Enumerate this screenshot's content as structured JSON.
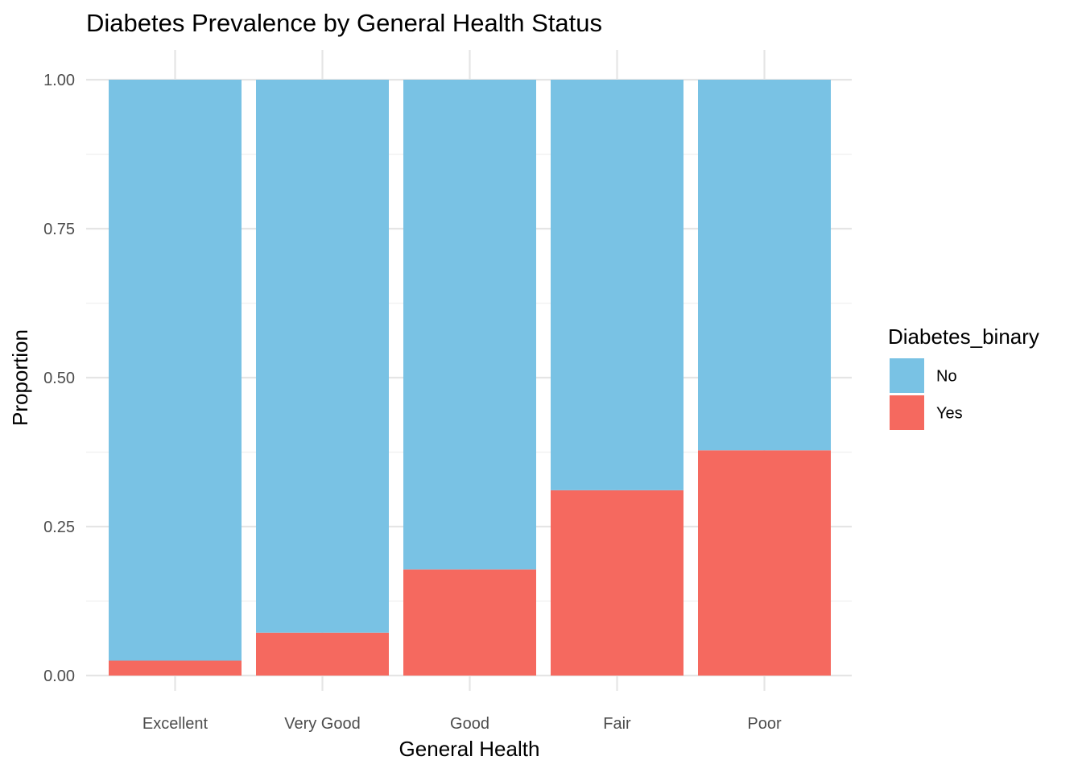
{
  "chart_data": {
    "type": "bar",
    "stacked": true,
    "title": "Diabetes Prevalence by General Health Status",
    "xlabel": "General Health",
    "ylabel": "Proportion",
    "categories": [
      "Excellent",
      "Very Good",
      "Good",
      "Fair",
      "Poor"
    ],
    "series": [
      {
        "name": "No",
        "color": "#79C2E4",
        "values": [
          0.975,
          0.928,
          0.822,
          0.689,
          0.622
        ]
      },
      {
        "name": "Yes",
        "color": "#F5695F",
        "values": [
          0.025,
          0.072,
          0.178,
          0.311,
          0.378
        ]
      }
    ],
    "ylim": [
      0,
      1
    ],
    "yticks": [
      "0.00",
      "0.25",
      "0.50",
      "0.75",
      "1.00"
    ],
    "grid": true,
    "legend": {
      "title": "Diabetes_binary",
      "position": "right",
      "entries": [
        "No",
        "Yes"
      ]
    }
  }
}
